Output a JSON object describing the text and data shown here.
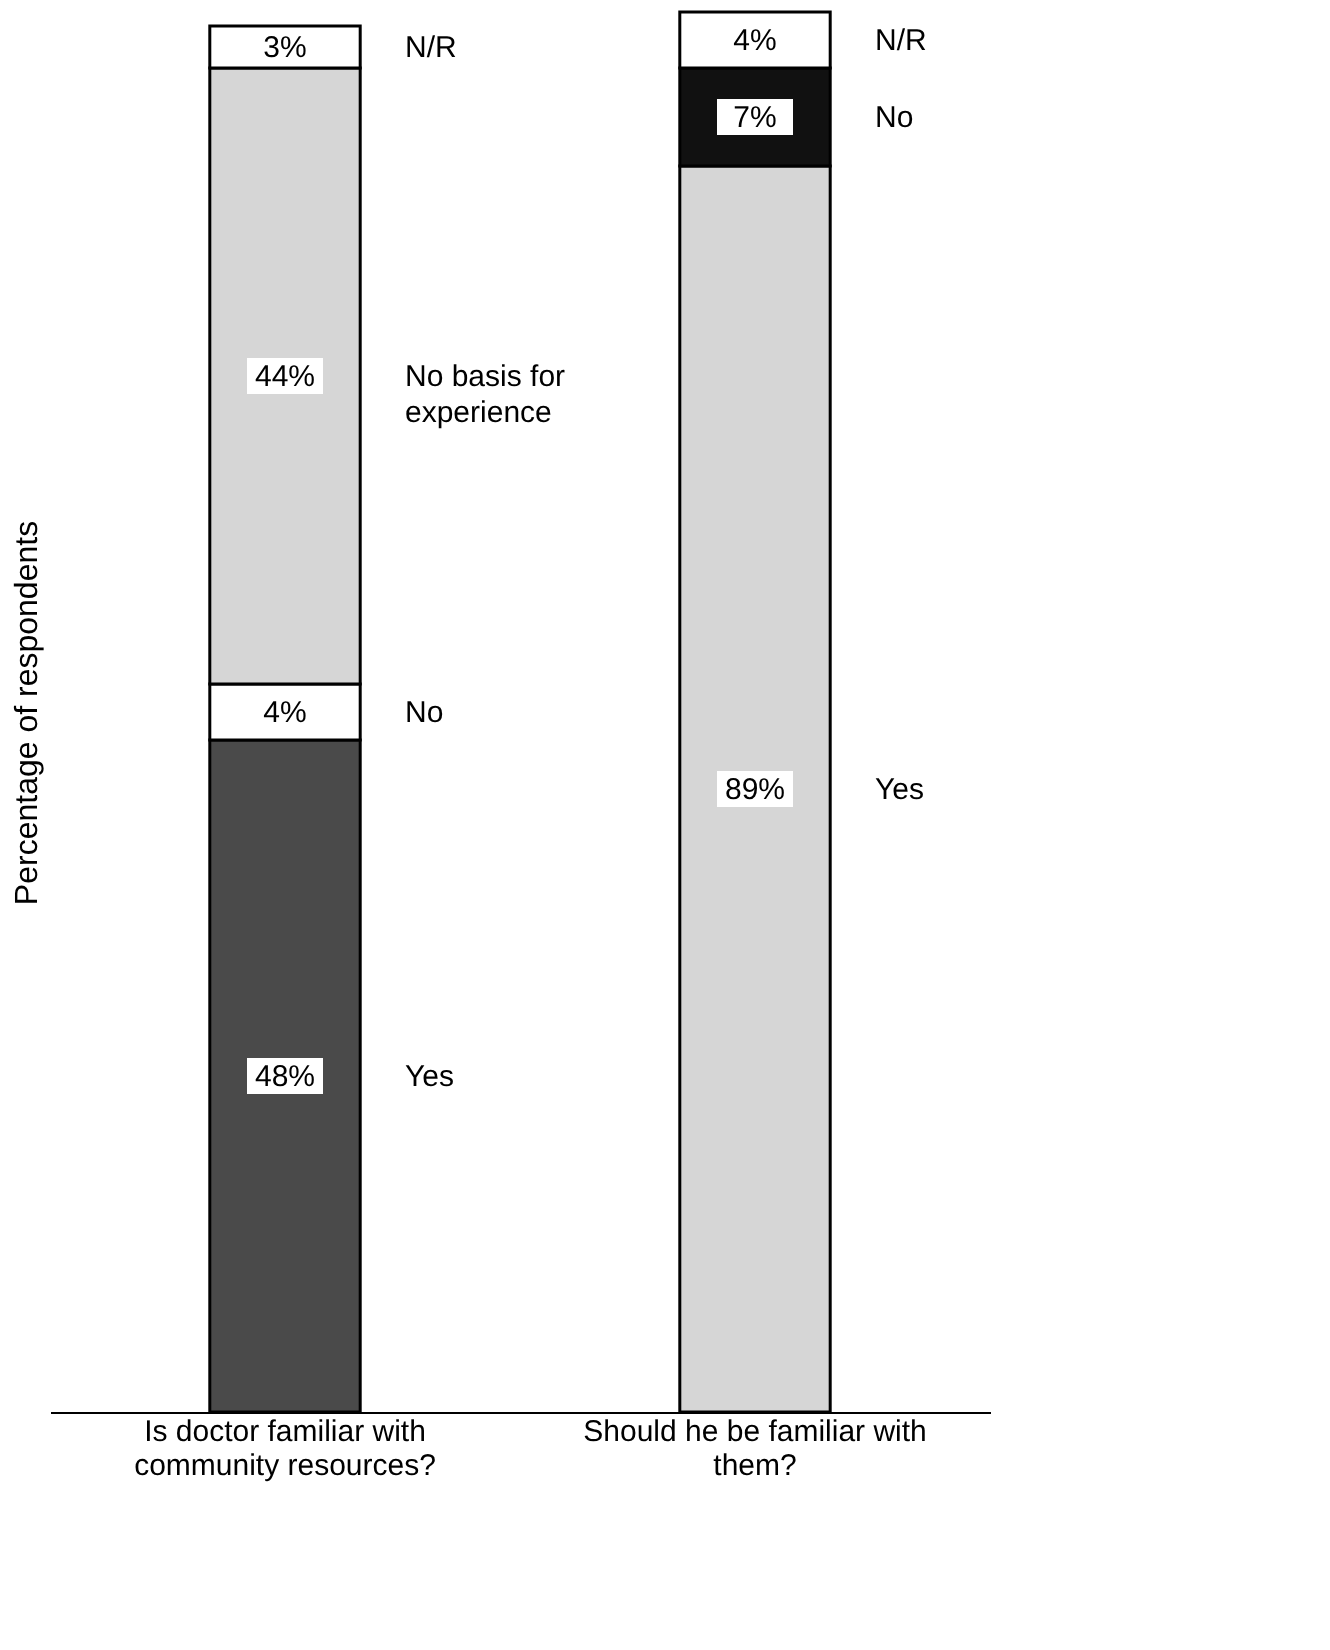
{
  "chart_data": {
    "type": "bar",
    "stacked": true,
    "legend": false,
    "grid": false,
    "tick_labels": "x",
    "ylabel": "Percentage of respondents",
    "categories": [
      "Is doctor familiar with community resources?",
      "Should he be familiar with them?"
    ],
    "series": [
      {
        "name": "Yes",
        "colors": [
          "#4a4a4a",
          "#d6d6d6"
        ],
        "values": [
          48,
          89
        ],
        "value_labels": [
          "48%",
          "89%"
        ]
      },
      {
        "name": "No",
        "colors": [
          "#ffffff",
          "#111111"
        ],
        "values": [
          4,
          7
        ],
        "value_labels": [
          "4%",
          "7%"
        ]
      },
      {
        "name": "No basis for experience",
        "colors": [
          "#d6d6d6",
          "#ffffff"
        ],
        "values": [
          44,
          null
        ],
        "value_labels": [
          "44%",
          null
        ]
      },
      {
        "name": "N/R",
        "colors": [
          "#ffffff",
          "#ffffff"
        ],
        "values": [
          3,
          4
        ],
        "value_labels": [
          "3%",
          "4%"
        ]
      }
    ]
  }
}
